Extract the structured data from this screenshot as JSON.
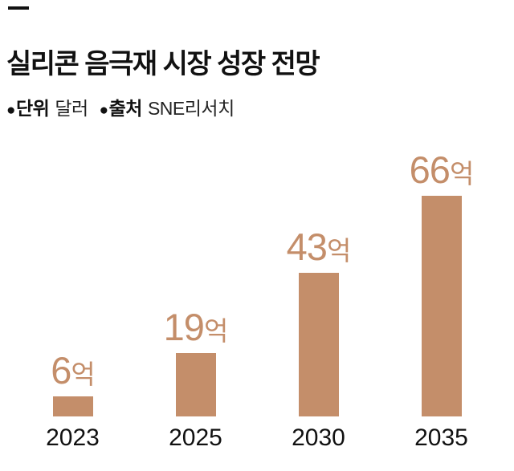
{
  "header": {
    "title": "실리콘 음극재 시장 성장 전망",
    "legend": [
      {
        "bullet": "●",
        "label": "단위",
        "value": "달러"
      },
      {
        "bullet": "●",
        "label": "출처",
        "value": "SNE리서치"
      }
    ]
  },
  "chart_data": {
    "type": "bar",
    "title": "실리콘 음극재 시장 성장 전망",
    "unit": "달러",
    "source": "SNE리서치",
    "categories": [
      "2023",
      "2025",
      "2030",
      "2035"
    ],
    "values": [
      6,
      19,
      43,
      66
    ],
    "value_suffix": "억",
    "ylim": [
      0,
      70
    ],
    "grid": false,
    "legend_position": "none"
  },
  "colors": {
    "bar": "#c48e6a",
    "value_label": "#c48e6a",
    "text": "#111111"
  }
}
